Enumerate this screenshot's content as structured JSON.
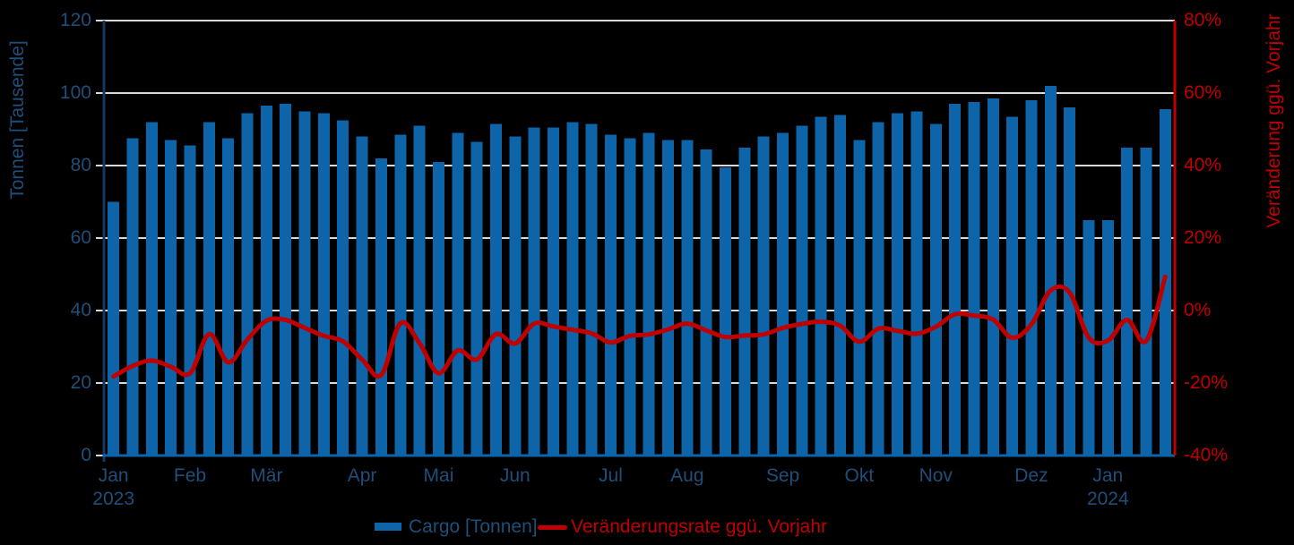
{
  "chart_data": {
    "type": "combo-bar-line",
    "title": "",
    "background": "#000000",
    "grid": true,
    "legend_position": "bottom",
    "x_axis": {
      "granularity": "weekly",
      "month_ticks": [
        {
          "bar_index": 0,
          "label": "Jan",
          "year": "2023"
        },
        {
          "bar_index": 4,
          "label": "Feb"
        },
        {
          "bar_index": 8,
          "label": "Mär"
        },
        {
          "bar_index": 13,
          "label": "Apr"
        },
        {
          "bar_index": 17,
          "label": "Mai"
        },
        {
          "bar_index": 21,
          "label": "Jun"
        },
        {
          "bar_index": 26,
          "label": "Jul"
        },
        {
          "bar_index": 30,
          "label": "Aug"
        },
        {
          "bar_index": 35,
          "label": "Sep"
        },
        {
          "bar_index": 39,
          "label": "Okt"
        },
        {
          "bar_index": 43,
          "label": "Nov"
        },
        {
          "bar_index": 48,
          "label": "Dez"
        },
        {
          "bar_index": 52,
          "label": "Jan",
          "year": "2024"
        }
      ]
    },
    "left_axis": {
      "title": "Tonnen [Tausende]",
      "min": 0,
      "max": 120,
      "step": 20,
      "tick_labels": [
        "120",
        "100",
        "80",
        "60",
        "40",
        "20",
        "0"
      ],
      "text_color": "#1F4E79"
    },
    "right_axis": {
      "title": "Veränderung ggü. Vorjahr",
      "min": -40,
      "max": 80,
      "step": 20,
      "tick_labels": [
        "80%",
        "60%",
        "40%",
        "20%",
        "0%",
        "-20%",
        "-40%"
      ],
      "text_color": "#C00000"
    },
    "series": [
      {
        "name": "Cargo [Tonnen]",
        "type": "bar",
        "axis": "left",
        "color": "#0E64A8",
        "values": [
          70,
          87.5,
          92,
          87,
          85.5,
          92,
          87.5,
          94.5,
          96.5,
          97,
          95,
          94.5,
          92.5,
          88,
          82,
          88.5,
          91,
          81,
          89,
          86.5,
          91.5,
          88,
          90.5,
          90.5,
          92,
          91.5,
          88.5,
          87.5,
          89,
          87,
          87,
          84.5,
          79.5,
          85,
          88,
          89,
          91,
          93.5,
          94,
          87,
          92,
          94.5,
          95,
          91.5,
          97,
          97.5,
          98.5,
          93.5,
          98,
          102,
          96,
          65,
          65,
          85,
          85,
          95.5
        ]
      },
      {
        "name": "Veränderungsrate ggü. Vorjahr",
        "type": "line",
        "axis": "right",
        "color": "#C00000",
        "values": [
          -18.2,
          -15.3,
          -13.8,
          -15.5,
          -17.3,
          -6.5,
          -14.3,
          -8.0,
          -2.8,
          -2.6,
          -4.8,
          -7.0,
          -8.5,
          -13.5,
          -17.8,
          -3.5,
          -9.0,
          -17.3,
          -11.0,
          -13.5,
          -6.5,
          -9.1,
          -3.6,
          -4.4,
          -5.3,
          -6.3,
          -8.8,
          -7.0,
          -6.6,
          -5.2,
          -3.6,
          -5.5,
          -7.3,
          -6.9,
          -6.6,
          -4.8,
          -3.7,
          -3.1,
          -4.2,
          -8.6,
          -5.0,
          -5.6,
          -6.4,
          -4.5,
          -1.0,
          -1.4,
          -2.5,
          -7.5,
          -3.8,
          5.5,
          5.0,
          -7.5,
          -8.3,
          -2.6,
          -8.4,
          9.3
        ]
      }
    ],
    "colors": {
      "gridline": "#D9D9D9",
      "left_axis_line": "#17375E",
      "bottom_axis_line": "#0E64A8",
      "right_axis_line": "#C00000"
    }
  }
}
